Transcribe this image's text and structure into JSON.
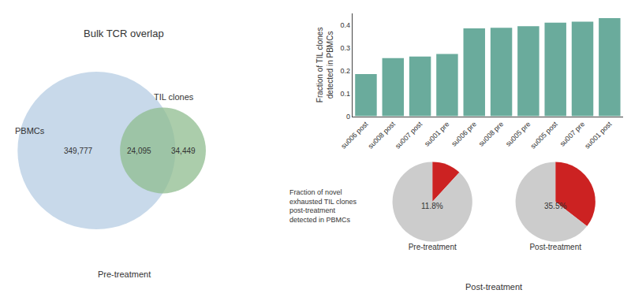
{
  "chart_data": [
    {
      "type": "venn",
      "title": "Bulk TCR overlap",
      "footer": "Pre-treatment",
      "series": [
        {
          "name": "PBMCs",
          "color": "#aac4df"
        },
        {
          "name": "TIL clones",
          "color": "#8fbc8f"
        }
      ],
      "values": [
        349777,
        24095,
        34449
      ],
      "value_labels": [
        "349,777",
        "24,095",
        "34,449"
      ]
    },
    {
      "type": "bar",
      "categories": [
        "su006 post",
        "su008 post",
        "su007 post",
        "su001 pre",
        "su006 pre",
        "su008 pre",
        "su005 pre",
        "su005 post",
        "su007 pre",
        "su001 post"
      ],
      "values": [
        0.185,
        0.255,
        0.262,
        0.273,
        0.385,
        0.388,
        0.395,
        0.41,
        0.415,
        0.43
      ],
      "color": "#6aab9c",
      "ylabel": "Fraction of TIL clones\ndetected in PBMCs",
      "ylim": [
        0,
        0.45
      ],
      "yticks": [
        0,
        0.1,
        0.2,
        0.3,
        0.4
      ],
      "grid": false
    },
    {
      "type": "pie",
      "annotation": "Fraction of novel\nexhausted TIL clones\npost-treatment\ndetected in PBMCs",
      "footer": "Post-treatment",
      "colors": [
        "#cc2222",
        "#cccccc"
      ],
      "series": [
        {
          "name": "Pre-treatment",
          "values": [
            11.8,
            88.2
          ],
          "value_labels": [
            "11.8%",
            null
          ]
        },
        {
          "name": "Post-treatment",
          "values": [
            35.5,
            64.5
          ],
          "value_labels": [
            "35.5%",
            null
          ]
        }
      ]
    }
  ]
}
